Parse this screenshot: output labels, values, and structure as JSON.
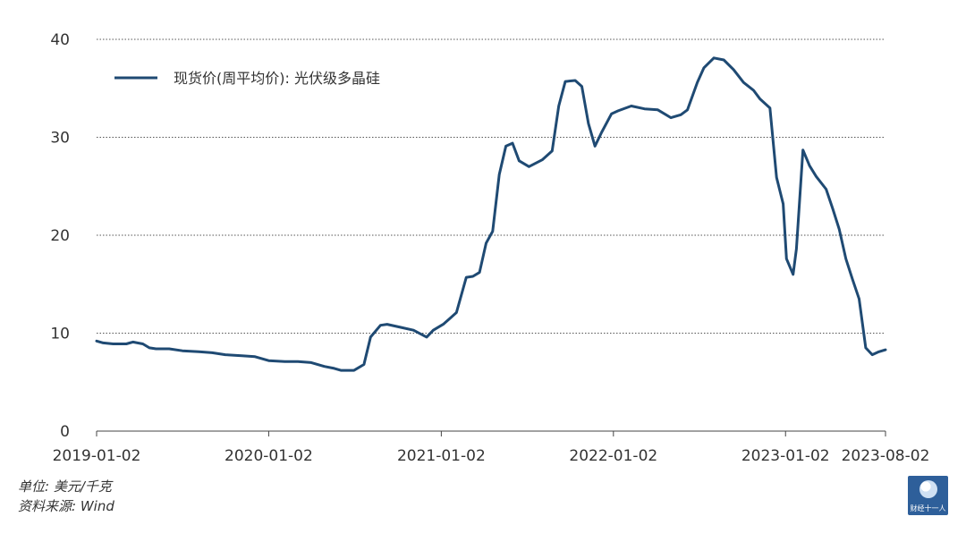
{
  "chart_data": {
    "type": "line",
    "title": "",
    "xlabel": "",
    "ylabel": "",
    "ylim": [
      0,
      40
    ],
    "yticks": [
      0,
      10,
      20,
      30,
      40
    ],
    "grid": "horizontal dotted",
    "legend_position": "top-left",
    "xticks": [
      "2019-01-02",
      "2020-01-02",
      "2021-01-02",
      "2022-01-02",
      "2023-01-02",
      "2023-08-02"
    ],
    "series": [
      {
        "name": "现货价(周平均价): 光伏级多晶硅",
        "color": "#1f4a73",
        "points": [
          [
            "2019-01-02",
            9.2
          ],
          [
            "2019-01-16",
            9.0
          ],
          [
            "2019-02-06",
            8.9
          ],
          [
            "2019-03-06",
            8.9
          ],
          [
            "2019-03-20",
            9.1
          ],
          [
            "2019-04-10",
            8.9
          ],
          [
            "2019-04-24",
            8.5
          ],
          [
            "2019-05-08",
            8.4
          ],
          [
            "2019-06-05",
            8.4
          ],
          [
            "2019-07-03",
            8.2
          ],
          [
            "2019-08-07",
            8.1
          ],
          [
            "2019-09-04",
            8.0
          ],
          [
            "2019-10-02",
            7.8
          ],
          [
            "2019-11-06",
            7.7
          ],
          [
            "2019-12-04",
            7.6
          ],
          [
            "2020-01-02",
            7.2
          ],
          [
            "2020-02-05",
            7.1
          ],
          [
            "2020-03-04",
            7.1
          ],
          [
            "2020-04-01",
            7.0
          ],
          [
            "2020-04-29",
            6.6
          ],
          [
            "2020-05-20",
            6.4
          ],
          [
            "2020-06-03",
            6.2
          ],
          [
            "2020-07-01",
            6.2
          ],
          [
            "2020-07-22",
            6.8
          ],
          [
            "2020-08-05",
            9.6
          ],
          [
            "2020-08-26",
            10.8
          ],
          [
            "2020-09-09",
            10.9
          ],
          [
            "2020-10-07",
            10.6
          ],
          [
            "2020-11-04",
            10.3
          ],
          [
            "2020-12-02",
            9.6
          ],
          [
            "2020-12-16",
            10.3
          ],
          [
            "2021-01-06",
            10.9
          ],
          [
            "2021-01-20",
            11.5
          ],
          [
            "2021-02-03",
            12.1
          ],
          [
            "2021-02-24",
            15.7
          ],
          [
            "2021-03-10",
            15.8
          ],
          [
            "2021-03-24",
            16.2
          ],
          [
            "2021-04-07",
            19.2
          ],
          [
            "2021-04-21",
            20.4
          ],
          [
            "2021-05-05",
            26.2
          ],
          [
            "2021-05-19",
            29.1
          ],
          [
            "2021-06-02",
            29.4
          ],
          [
            "2021-06-16",
            27.6
          ],
          [
            "2021-07-07",
            27.0
          ],
          [
            "2021-08-04",
            27.7
          ],
          [
            "2021-08-25",
            28.6
          ],
          [
            "2021-09-08",
            33.2
          ],
          [
            "2021-09-22",
            35.7
          ],
          [
            "2021-10-13",
            35.8
          ],
          [
            "2021-10-27",
            35.2
          ],
          [
            "2021-11-10",
            31.4
          ],
          [
            "2021-11-24",
            29.1
          ],
          [
            "2021-12-08",
            30.5
          ],
          [
            "2021-12-29",
            32.4
          ],
          [
            "2022-01-12",
            32.7
          ],
          [
            "2022-02-09",
            33.2
          ],
          [
            "2022-03-09",
            32.9
          ],
          [
            "2022-04-06",
            32.8
          ],
          [
            "2022-05-04",
            32.0
          ],
          [
            "2022-05-25",
            32.3
          ],
          [
            "2022-06-08",
            32.8
          ],
          [
            "2022-06-29",
            35.6
          ],
          [
            "2022-07-13",
            37.1
          ],
          [
            "2022-08-03",
            38.1
          ],
          [
            "2022-08-24",
            37.9
          ],
          [
            "2022-09-14",
            36.9
          ],
          [
            "2022-10-05",
            35.6
          ],
          [
            "2022-10-26",
            34.8
          ],
          [
            "2022-11-09",
            33.9
          ],
          [
            "2022-11-30",
            33.0
          ],
          [
            "2022-12-14",
            25.9
          ],
          [
            "2022-12-28",
            23.2
          ],
          [
            "2023-01-04",
            17.6
          ],
          [
            "2023-01-18",
            16.0
          ],
          [
            "2023-01-25",
            18.6
          ],
          [
            "2023-02-08",
            28.7
          ],
          [
            "2023-02-22",
            27.1
          ],
          [
            "2023-03-08",
            26.0
          ],
          [
            "2023-03-29",
            24.7
          ],
          [
            "2023-04-12",
            22.7
          ],
          [
            "2023-04-26",
            20.6
          ],
          [
            "2023-05-10",
            17.6
          ],
          [
            "2023-05-24",
            15.5
          ],
          [
            "2023-06-07",
            13.5
          ],
          [
            "2023-06-21",
            8.5
          ],
          [
            "2023-07-05",
            7.8
          ],
          [
            "2023-07-19",
            8.1
          ],
          [
            "2023-08-02",
            8.3
          ]
        ]
      }
    ]
  },
  "footer": {
    "unit": "单位: 美元/千克",
    "source": "资料来源: Wind"
  },
  "logo": {
    "text": "财经十一人"
  }
}
